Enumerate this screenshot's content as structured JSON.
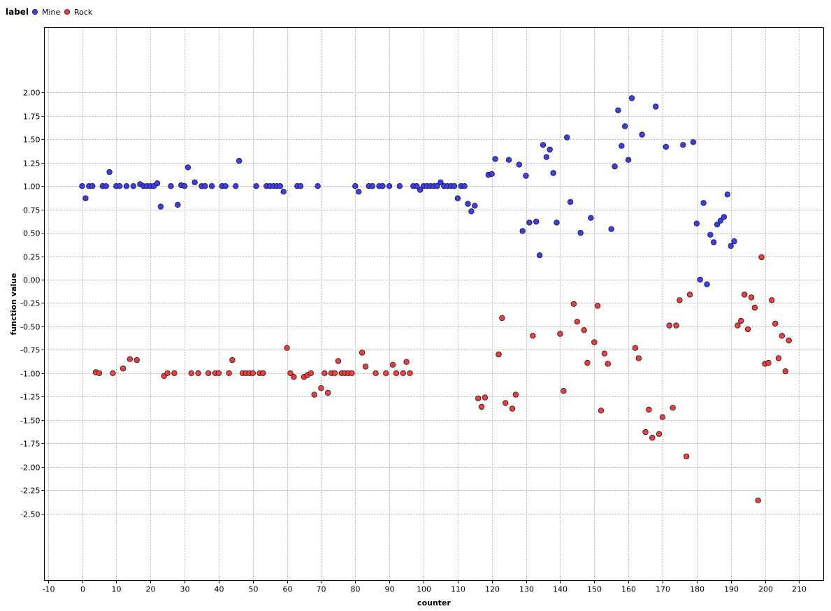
{
  "chart_data": {
    "type": "scatter",
    "title": "",
    "xlabel": "counter",
    "ylabel": "function value",
    "xlim": [
      -10,
      217
    ],
    "ylim": [
      -2.6,
      2.15
    ],
    "xticks": [
      -10,
      0,
      10,
      20,
      30,
      40,
      50,
      60,
      70,
      80,
      90,
      100,
      110,
      120,
      130,
      140,
      150,
      160,
      170,
      180,
      190,
      200,
      210
    ],
    "yticks": [
      "2.00",
      "1.75",
      "1.50",
      "1.25",
      "1.00",
      "0.75",
      "0.50",
      "0.25",
      "0.00",
      "-0.25",
      "-0.50",
      "-0.75",
      "-1.00",
      "-1.25",
      "-1.50",
      "-1.75",
      "-2.00",
      "-2.25",
      "-2.50"
    ],
    "grid": true,
    "legend": {
      "title": "label",
      "placement": "top-left"
    },
    "series": [
      {
        "name": "Mine",
        "color": "#3c3cf0",
        "points": [
          [
            0,
            1.0
          ],
          [
            1,
            0.87
          ],
          [
            2,
            1.0
          ],
          [
            3,
            1.0
          ],
          [
            6,
            1.0
          ],
          [
            7,
            1.0
          ],
          [
            8,
            1.15
          ],
          [
            10,
            1.0
          ],
          [
            11,
            1.0
          ],
          [
            13,
            1.0
          ],
          [
            15,
            1.0
          ],
          [
            17,
            1.02
          ],
          [
            18,
            1.0
          ],
          [
            19,
            1.0
          ],
          [
            20,
            1.0
          ],
          [
            21,
            1.0
          ],
          [
            22,
            1.03
          ],
          [
            23,
            0.78
          ],
          [
            26,
            1.0
          ],
          [
            28,
            0.8
          ],
          [
            29,
            1.01
          ],
          [
            30,
            1.0
          ],
          [
            31,
            1.2
          ],
          [
            33,
            1.04
          ],
          [
            35,
            1.0
          ],
          [
            36,
            1.0
          ],
          [
            38,
            1.0
          ],
          [
            41,
            1.0
          ],
          [
            42,
            1.0
          ],
          [
            45,
            1.0
          ],
          [
            46,
            1.27
          ],
          [
            51,
            1.0
          ],
          [
            54,
            1.0
          ],
          [
            55,
            1.0
          ],
          [
            56,
            1.0
          ],
          [
            57,
            1.0
          ],
          [
            58,
            1.0
          ],
          [
            59,
            0.94
          ],
          [
            63,
            1.0
          ],
          [
            64,
            1.0
          ],
          [
            69,
            1.0
          ],
          [
            80,
            1.0
          ],
          [
            81,
            0.94
          ],
          [
            84,
            1.0
          ],
          [
            85,
            1.0
          ],
          [
            87,
            1.0
          ],
          [
            88,
            1.0
          ],
          [
            90,
            1.0
          ],
          [
            93,
            1.0
          ],
          [
            97,
            1.0
          ],
          [
            98,
            1.0
          ],
          [
            99,
            0.96
          ],
          [
            100,
            1.0
          ],
          [
            101,
            1.0
          ],
          [
            102,
            1.0
          ],
          [
            103,
            1.0
          ],
          [
            104,
            1.0
          ],
          [
            105,
            1.04
          ],
          [
            106,
            1.0
          ],
          [
            107,
            1.0
          ],
          [
            108,
            1.0
          ],
          [
            109,
            1.0
          ],
          [
            110,
            0.87
          ],
          [
            111,
            1.0
          ],
          [
            112,
            1.0
          ],
          [
            113,
            0.81
          ],
          [
            114,
            0.73
          ],
          [
            115,
            0.79
          ],
          [
            119,
            1.12
          ],
          [
            120,
            1.13
          ],
          [
            121,
            1.29
          ],
          [
            125,
            1.28
          ],
          [
            128,
            1.23
          ],
          [
            129,
            0.52
          ],
          [
            130,
            1.11
          ],
          [
            131,
            0.61
          ],
          [
            133,
            0.62
          ],
          [
            134,
            0.26
          ],
          [
            135,
            1.44
          ],
          [
            136,
            1.31
          ],
          [
            137,
            1.39
          ],
          [
            138,
            1.14
          ],
          [
            139,
            0.61
          ],
          [
            142,
            1.52
          ],
          [
            143,
            0.83
          ],
          [
            146,
            0.5
          ],
          [
            149,
            0.66
          ],
          [
            155,
            0.54
          ],
          [
            156,
            1.21
          ],
          [
            157,
            1.81
          ],
          [
            158,
            1.43
          ],
          [
            159,
            1.64
          ],
          [
            160,
            1.28
          ],
          [
            161,
            1.94
          ],
          [
            164,
            1.55
          ],
          [
            168,
            1.85
          ],
          [
            171,
            1.42
          ],
          [
            176,
            1.44
          ],
          [
            179,
            1.47
          ],
          [
            180,
            0.6
          ],
          [
            181,
            0.0
          ],
          [
            182,
            0.82
          ],
          [
            183,
            -0.05
          ],
          [
            184,
            0.48
          ],
          [
            185,
            0.4
          ],
          [
            186,
            0.59
          ],
          [
            187,
            0.63
          ],
          [
            188,
            0.67
          ],
          [
            189,
            0.91
          ],
          [
            190,
            0.36
          ],
          [
            191,
            0.41
          ]
        ]
      },
      {
        "name": "Rock",
        "color": "#f03c3c",
        "points": [
          [
            4,
            -0.99
          ],
          [
            5,
            -1.0
          ],
          [
            9,
            -1.0
          ],
          [
            12,
            -0.95
          ],
          [
            14,
            -0.85
          ],
          [
            16,
            -0.86
          ],
          [
            24,
            -1.03
          ],
          [
            25,
            -1.0
          ],
          [
            27,
            -1.0
          ],
          [
            32,
            -1.0
          ],
          [
            34,
            -1.0
          ],
          [
            37,
            -1.0
          ],
          [
            39,
            -1.0
          ],
          [
            40,
            -1.0
          ],
          [
            43,
            -1.0
          ],
          [
            44,
            -0.86
          ],
          [
            47,
            -1.0
          ],
          [
            48,
            -1.0
          ],
          [
            49,
            -1.0
          ],
          [
            50,
            -1.0
          ],
          [
            52,
            -1.0
          ],
          [
            53,
            -1.0
          ],
          [
            60,
            -0.73
          ],
          [
            61,
            -1.0
          ],
          [
            62,
            -1.04
          ],
          [
            65,
            -1.04
          ],
          [
            66,
            -1.02
          ],
          [
            67,
            -1.0
          ],
          [
            68,
            -1.23
          ],
          [
            70,
            -1.16
          ],
          [
            71,
            -1.0
          ],
          [
            72,
            -1.21
          ],
          [
            73,
            -1.0
          ],
          [
            74,
            -1.0
          ],
          [
            75,
            -0.87
          ],
          [
            76,
            -1.0
          ],
          [
            77,
            -1.0
          ],
          [
            78,
            -1.0
          ],
          [
            79,
            -1.0
          ],
          [
            82,
            -0.78
          ],
          [
            83,
            -0.93
          ],
          [
            86,
            -1.0
          ],
          [
            89,
            -1.0
          ],
          [
            91,
            -0.91
          ],
          [
            92,
            -1.0
          ],
          [
            94,
            -1.0
          ],
          [
            95,
            -0.88
          ],
          [
            96,
            -1.0
          ],
          [
            116,
            -1.27
          ],
          [
            117,
            -1.36
          ],
          [
            118,
            -1.26
          ],
          [
            122,
            -0.8
          ],
          [
            123,
            -0.41
          ],
          [
            124,
            -1.32
          ],
          [
            126,
            -1.38
          ],
          [
            127,
            -1.23
          ],
          [
            132,
            -0.6
          ],
          [
            140,
            -0.58
          ],
          [
            141,
            -1.19
          ],
          [
            144,
            -0.26
          ],
          [
            145,
            -0.45
          ],
          [
            147,
            -0.54
          ],
          [
            148,
            -0.89
          ],
          [
            150,
            -0.67
          ],
          [
            151,
            -0.28
          ],
          [
            152,
            -1.4
          ],
          [
            153,
            -0.79
          ],
          [
            154,
            -0.9
          ],
          [
            162,
            -0.73
          ],
          [
            163,
            -0.84
          ],
          [
            165,
            -1.63
          ],
          [
            166,
            -1.39
          ],
          [
            167,
            -1.69
          ],
          [
            169,
            -1.65
          ],
          [
            170,
            -1.47
          ],
          [
            172,
            -0.49
          ],
          [
            173,
            -1.37
          ],
          [
            174,
            -0.49
          ],
          [
            175,
            -0.22
          ],
          [
            177,
            -1.89
          ],
          [
            178,
            -0.16
          ],
          [
            192,
            -0.49
          ],
          [
            193,
            -0.44
          ],
          [
            194,
            -0.16
          ],
          [
            195,
            -0.53
          ],
          [
            196,
            -0.19
          ],
          [
            197,
            -0.3
          ],
          [
            198,
            -2.36
          ],
          [
            199,
            0.24
          ],
          [
            200,
            -0.9
          ],
          [
            201,
            -0.89
          ],
          [
            202,
            -0.22
          ],
          [
            203,
            -0.47
          ],
          [
            204,
            -0.84
          ],
          [
            205,
            -0.6
          ],
          [
            206,
            -0.98
          ],
          [
            207,
            -0.65
          ]
        ]
      }
    ]
  }
}
